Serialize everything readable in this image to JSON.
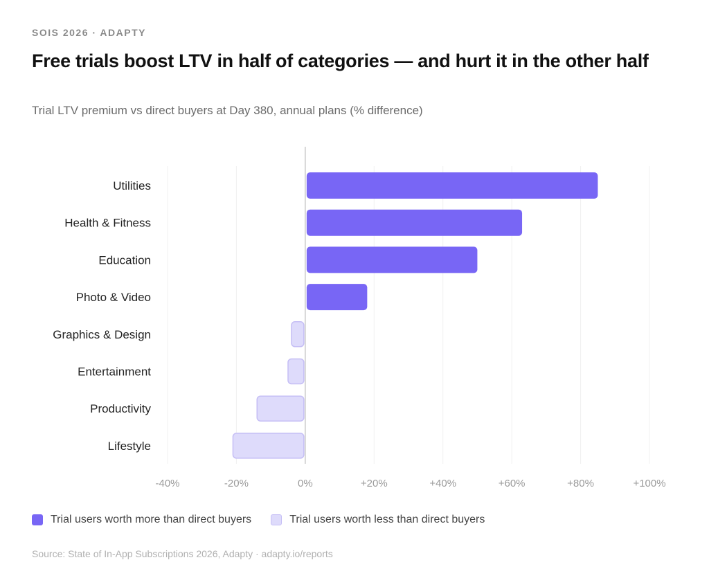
{
  "header": {
    "eyebrow": "SOIS 2026 · ADAPTY",
    "title": "Free trials boost LTV in half of categories — and hurt it in the other half",
    "subtitle": "Trial LTV premium vs direct buyers at Day 380, annual plans (% difference)"
  },
  "chart_data": {
    "type": "bar",
    "orientation": "horizontal",
    "categories": [
      "Utilities",
      "Health & Fitness",
      "Education",
      "Photo & Video",
      "Graphics & Design",
      "Entertainment",
      "Productivity",
      "Lifestyle"
    ],
    "values": [
      85,
      63,
      50,
      18,
      -4,
      -5,
      -14,
      -21
    ],
    "xlim": [
      -40,
      100
    ],
    "xticks": [
      -40,
      -20,
      0,
      20,
      40,
      60,
      80,
      100
    ],
    "xtick_labels": [
      "-40%",
      "-20%",
      "0%",
      "+20%",
      "+40%",
      "+60%",
      "+80%",
      "+100%"
    ],
    "grid": true,
    "legend_position": "bottom-left",
    "colors": {
      "positive": "#7866F5",
      "negative_fill": "#DEDBFB",
      "negative_border": "#C5BEF5"
    }
  },
  "legend": {
    "positive": "Trial users worth more than direct buyers",
    "negative": "Trial users worth less than direct buyers"
  },
  "footer": {
    "source": "Source: State of In-App Subscriptions 2026, Adapty · adapty.io/reports"
  }
}
